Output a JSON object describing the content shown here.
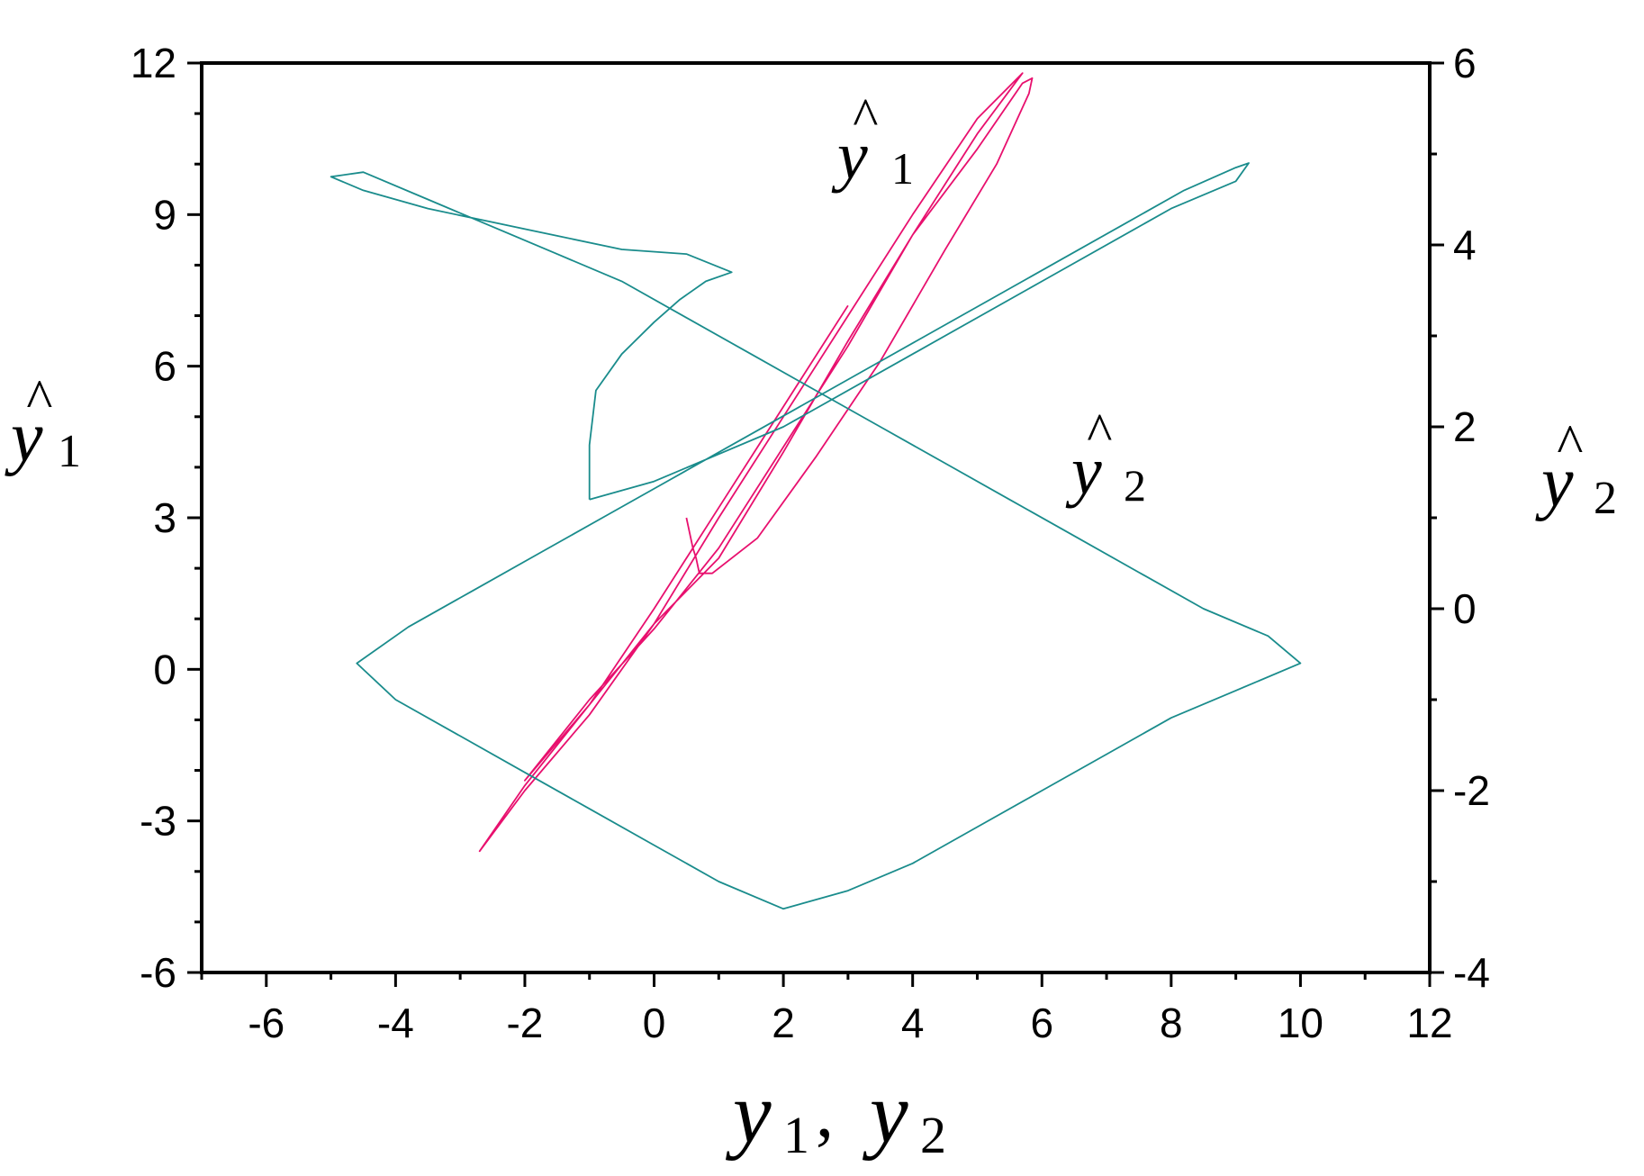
{
  "chart_data": {
    "type": "line",
    "title": "",
    "xlabel": {
      "base": "y",
      "sub": "1",
      "sep": ",",
      "base2": "y",
      "sub2": "2"
    },
    "ylabel_left": {
      "base": "y",
      "sub": "1",
      "hat": true
    },
    "ylabel_right": {
      "base": "y",
      "sub": "2",
      "hat": true
    },
    "xlim": [
      -7,
      12
    ],
    "ylim_left": [
      -6,
      12
    ],
    "ylim_right": [
      -4,
      6
    ],
    "x_ticks": [
      "-6",
      "-4",
      "-2",
      "0",
      "2",
      "4",
      "6",
      "8",
      "10",
      "12"
    ],
    "y_left_ticks": [
      "-6",
      "-3",
      "0",
      "3",
      "6",
      "9",
      "12"
    ],
    "y_right_ticks": [
      "-4",
      "-2",
      "0",
      "2",
      "4",
      "6"
    ],
    "grid": false,
    "legend": "none",
    "annotations": [
      {
        "base": "y",
        "sub": "1",
        "hat": true
      },
      {
        "base": "y",
        "sub": "2",
        "hat": true
      }
    ],
    "series": [
      {
        "axis": "left",
        "color": "#e8106e",
        "x": [
          0.5,
          0.6,
          0.65,
          0.7,
          0.9,
          1.6,
          2.5,
          3.5,
          4.5,
          5.3,
          5.8,
          5.85,
          5.7,
          5.0,
          4.0,
          3.0,
          2.0,
          1.0,
          0.0,
          -1.0,
          -2.0,
          -2.7,
          -2.0,
          -1.0,
          0.0,
          1.0,
          2.0,
          3.0,
          4.0,
          5.0,
          5.7,
          5.0,
          4.0,
          3.0,
          2.0,
          1.0,
          0.0,
          -1.0,
          -2.0,
          -1.0,
          0.0,
          1.0,
          2.0,
          3.0
        ],
        "y": [
          3.0,
          2.4,
          2.2,
          1.9,
          1.9,
          2.6,
          4.2,
          6.1,
          8.3,
          10.0,
          11.4,
          11.7,
          11.6,
          10.3,
          8.6,
          6.5,
          4.3,
          2.2,
          0.9,
          -0.7,
          -2.3,
          -3.6,
          -2.4,
          -0.9,
          0.9,
          3.0,
          5.0,
          7.0,
          9.0,
          10.9,
          11.8,
          10.6,
          8.6,
          6.4,
          4.4,
          2.4,
          0.8,
          -0.6,
          -2.2,
          -0.7,
          1.2,
          3.2,
          5.2,
          7.2
        ]
      },
      {
        "axis": "right",
        "color": "#1a8c8c",
        "x": [
          -1.0,
          -1.0,
          -0.9,
          -0.5,
          0.0,
          0.4,
          0.8,
          1.2,
          0.5,
          -0.5,
          -1.5,
          -2.5,
          -3.5,
          -4.5,
          -5.0,
          -4.5,
          -3.5,
          -2.5,
          -1.5,
          -0.5,
          0.5,
          1.5,
          2.5,
          3.5,
          4.5,
          5.5,
          6.5,
          7.5,
          8.5,
          9.5,
          10.0,
          9.0,
          8.0,
          7.0,
          6.0,
          5.0,
          4.0,
          3.0,
          2.0,
          1.0,
          0.0,
          -1.0,
          -2.0,
          -3.0,
          -4.0,
          -4.6,
          -3.8,
          -2.8,
          -1.8,
          -0.8,
          0.2,
          1.2,
          2.2,
          3.2,
          4.2,
          5.2,
          6.2,
          7.2,
          8.2,
          9.0,
          9.2,
          9.0,
          8.0,
          6.0,
          4.0,
          2.0,
          0.0,
          -1.0
        ],
        "y": [
          1.2,
          1.8,
          2.4,
          2.8,
          3.15,
          3.4,
          3.6,
          3.7,
          3.9,
          3.95,
          4.1,
          4.25,
          4.4,
          4.6,
          4.75,
          4.8,
          4.5,
          4.2,
          3.9,
          3.6,
          3.2,
          2.8,
          2.4,
          2.0,
          1.6,
          1.2,
          0.8,
          0.4,
          0.0,
          -0.3,
          -0.6,
          -0.9,
          -1.2,
          -1.6,
          -2.0,
          -2.4,
          -2.8,
          -3.1,
          -3.3,
          -3.0,
          -2.6,
          -2.2,
          -1.8,
          -1.4,
          -1.0,
          -0.6,
          -0.2,
          0.2,
          0.6,
          1.0,
          1.4,
          1.8,
          2.2,
          2.6,
          3.0,
          3.4,
          3.8,
          4.2,
          4.6,
          4.85,
          4.9,
          4.7,
          4.4,
          3.6,
          2.8,
          2.0,
          1.4,
          1.2
        ]
      }
    ]
  }
}
